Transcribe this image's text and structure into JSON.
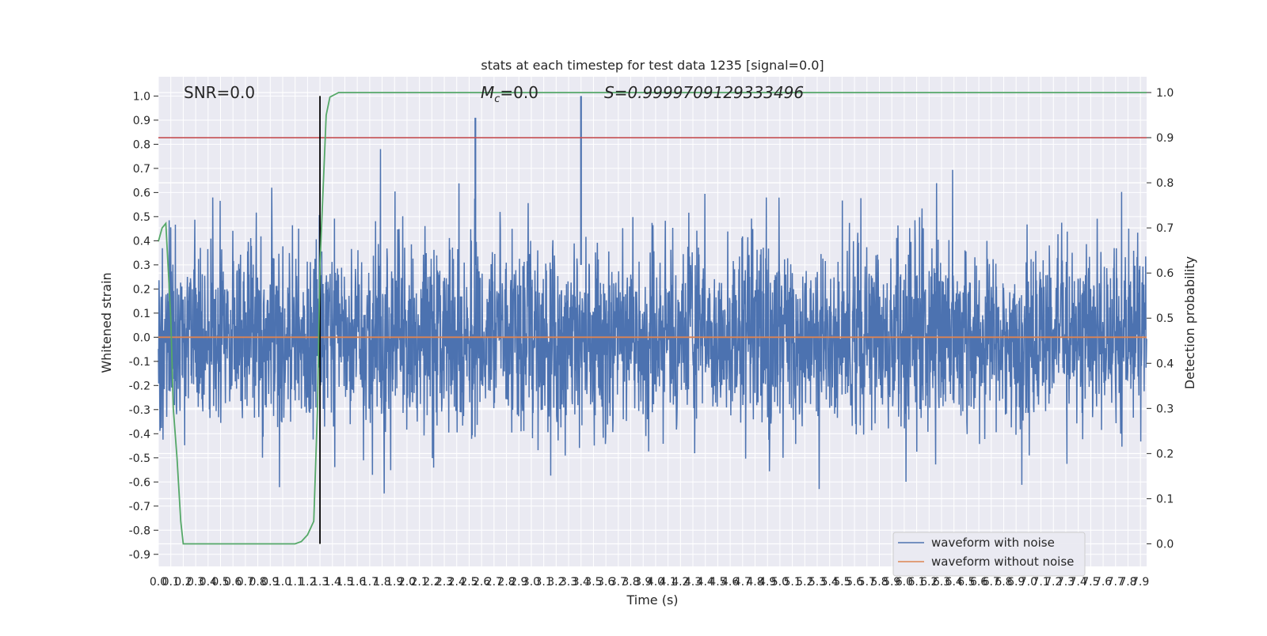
{
  "chart_data": {
    "type": "line",
    "title": "stats at each timestep for test data 1235 [signal=0.0]",
    "xlabel": "Time (s)",
    "ylabel": "Whitened strain",
    "ylabel_right": "Detection probability",
    "xlim": [
      0.0,
      7.95
    ],
    "ylim": [
      -0.95,
      1.08
    ],
    "ylim_right": [
      -0.05,
      1.035
    ],
    "x_ticks": [
      "0.0",
      "0.1",
      "0.2",
      "0.3",
      "0.4",
      "0.5",
      "0.6",
      "0.7",
      "0.8",
      "0.9",
      "1.0",
      "1.1",
      "1.2",
      "1.3",
      "1.4",
      "1.5",
      "1.6",
      "1.7",
      "1.8",
      "1.9",
      "2.0",
      "2.1",
      "2.2",
      "2.3",
      "2.4",
      "2.5",
      "2.6",
      "2.7",
      "2.8",
      "2.9",
      "3.0",
      "3.1",
      "3.2",
      "3.3",
      "3.4",
      "3.5",
      "3.6",
      "3.7",
      "3.8",
      "3.9",
      "4.0",
      "4.1",
      "4.2",
      "4.3",
      "4.4",
      "4.5",
      "4.6",
      "4.7",
      "4.8",
      "4.9",
      "5.0",
      "5.1",
      "5.2",
      "5.3",
      "5.4",
      "5.5",
      "5.6",
      "5.7",
      "5.8",
      "5.9",
      "6.0",
      "6.1",
      "6.2",
      "6.3",
      "6.4",
      "6.5",
      "6.6",
      "6.7",
      "6.8",
      "6.9",
      "7.0",
      "7.1",
      "7.2",
      "7.3",
      "7.4",
      "7.5",
      "7.6",
      "7.7",
      "7.8",
      "7.9"
    ],
    "y_ticks": [
      "1.0",
      "0.9",
      "0.8",
      "0.7",
      "0.6",
      "0.5",
      "0.4",
      "0.3",
      "0.2",
      "0.1",
      "0.0",
      "-0.1",
      "-0.2",
      "-0.3",
      "-0.4",
      "-0.5",
      "-0.6",
      "-0.7",
      "-0.8",
      "-0.9"
    ],
    "y_ticks_right": [
      "1.0",
      "0.9",
      "0.8",
      "0.7",
      "0.6",
      "0.5",
      "0.4",
      "0.3",
      "0.2",
      "0.1",
      "0.0"
    ],
    "annotations": {
      "snr": "SNR=0.0",
      "mc_symbol": "M",
      "mc_sub": "c",
      "mc_value": "=0.0",
      "s": "S=0.9999709129333496"
    },
    "legend": {
      "position": "lower right",
      "entries": [
        "waveform with noise",
        "waveform without noise"
      ]
    },
    "threshold_probability": 0.9,
    "marker_time": 1.3,
    "peak_markers": [
      {
        "x": 2.55,
        "y": 0.91
      },
      {
        "x": 3.4,
        "y": 1.0
      }
    ],
    "series": [
      {
        "name": "waveform with noise",
        "axis": "left",
        "color": "#4c72b0",
        "note_values": "dense noise, approx. range -0.8 to 1.0"
      },
      {
        "name": "waveform without noise",
        "axis": "left",
        "color": "#dd8452",
        "x": [
          0.0,
          7.95
        ],
        "y": [
          0.0,
          0.0
        ]
      },
      {
        "axis": "right",
        "color": "#55a868",
        "x": [
          0.0,
          0.03,
          0.06,
          0.1,
          0.12,
          0.15,
          0.18,
          0.2,
          0.3,
          0.5,
          0.8,
          1.0,
          1.1,
          1.15,
          1.2,
          1.25,
          1.28,
          1.3,
          1.35,
          1.38,
          1.45,
          1.6,
          2.0,
          3.0,
          4.0,
          5.0,
          6.0,
          7.0,
          7.95
        ],
        "y": [
          0.67,
          0.7,
          0.71,
          0.5,
          0.3,
          0.19,
          0.05,
          0.0,
          0.0,
          0.0,
          0.0,
          0.0,
          0.0,
          0.005,
          0.02,
          0.05,
          0.3,
          0.62,
          0.95,
          0.99,
          1.0,
          1.0,
          1.0,
          1.0,
          1.0,
          1.0,
          1.0,
          1.0,
          1.0
        ]
      }
    ]
  }
}
